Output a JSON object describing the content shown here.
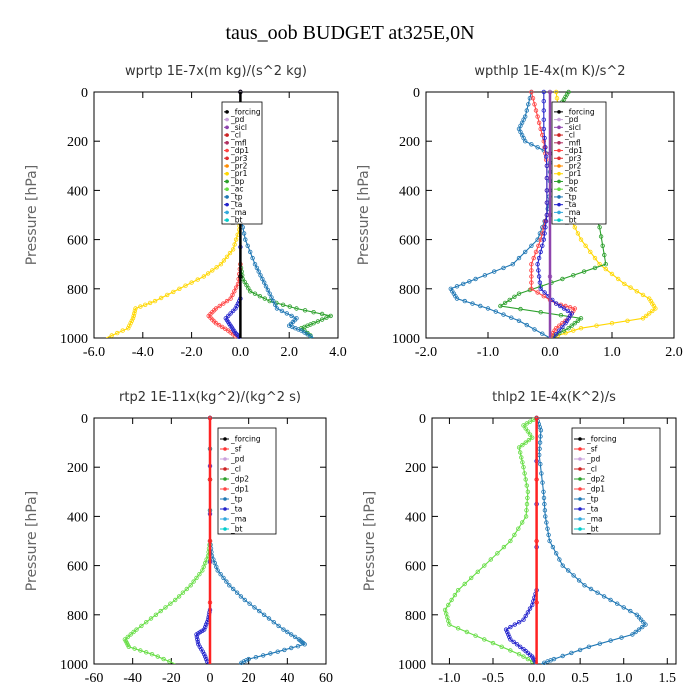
{
  "title": "taus_oob  BUDGET at325E,0N",
  "colors": {
    "forcing": "#000000",
    "pd": "#c9a0dc",
    "sicl": "#8e44ad",
    "cl": "#cc2222",
    "mfl": "#b03060",
    "dp1": "#ff4444",
    "pr3": "#e03030",
    "pr2": "#ff8c00",
    "pr1": "#ffd700",
    "bp": "#2ca02c",
    "ac": "#66dd44",
    "tp": "#1f77b4",
    "ta": "#2222cc",
    "ma": "#33aadd",
    "bt": "#00cccc"
  },
  "chart_data": [
    {
      "type": "line",
      "title": "wprtp   1E-7x(m kg)/(s^2 kg)",
      "ylabel": "Pressure [hPa]",
      "xlim": [
        -6.0,
        4.0
      ],
      "ylim": [
        1000,
        0
      ],
      "xticks": [
        "-6.0",
        "-4.0",
        "-2.0",
        "0.0",
        "2.0",
        "4.0"
      ],
      "xtick_values": [
        -6,
        -4,
        -2,
        0,
        2,
        4
      ],
      "yticks": [
        "0",
        "200",
        "400",
        "600",
        "800",
        "1000"
      ],
      "legend": [
        "_forcing",
        "_pd",
        "_sicl",
        "_cl",
        "_mfl",
        "_dp1",
        "_pr3",
        "_pr2",
        "_pr1",
        "_bp",
        "_ac",
        "_tp",
        "_ta",
        "_ma",
        "_bt"
      ],
      "series": [
        {
          "name": "_pr1",
          "color": "#ffd700",
          "x": [
            0,
            0,
            -0.05,
            -0.3,
            -0.8,
            -1.5,
            -2.5,
            -3.5,
            -4.3,
            -4.4,
            -4.6,
            -5.5
          ],
          "y": [
            0,
            500,
            560,
            640,
            700,
            750,
            800,
            850,
            880,
            920,
            960,
            1000
          ]
        },
        {
          "name": "_bp",
          "color": "#2ca02c",
          "x": [
            0,
            0,
            0.1,
            0.4,
            1.2,
            2.3,
            3.7,
            3.0,
            2.5,
            3.0
          ],
          "y": [
            0,
            700,
            760,
            810,
            850,
            880,
            910,
            940,
            960,
            1000
          ]
        },
        {
          "name": "_tp",
          "color": "#1f77b4",
          "x": [
            0,
            0,
            0.2,
            0.6,
            0.9,
            1.2,
            1.5,
            2.3,
            2.0,
            2.5,
            3.0
          ],
          "y": [
            0,
            500,
            600,
            700,
            760,
            820,
            880,
            920,
            950,
            970,
            1000
          ]
        },
        {
          "name": "_dp1",
          "color": "#ff4444",
          "x": [
            0,
            0,
            -0.1,
            -0.4,
            -1.0,
            -1.3,
            -1.0,
            -0.5,
            -0.1
          ],
          "y": [
            0,
            700,
            780,
            840,
            880,
            910,
            940,
            970,
            1000
          ]
        },
        {
          "name": "_ta",
          "color": "#2222cc",
          "x": [
            0,
            0,
            -0.2,
            -0.6,
            -0.4,
            -0.2,
            0
          ],
          "y": [
            0,
            840,
            880,
            920,
            950,
            980,
            1000
          ]
        },
        {
          "name": "_forcing",
          "color": "#000000",
          "x": [
            0,
            0
          ],
          "y": [
            0,
            1000
          ]
        }
      ]
    },
    {
      "type": "line",
      "title": "wpthlp   1E-4x(m K)/s^2",
      "ylabel": "Pressure [hPa]",
      "xlim": [
        -2.0,
        2.0
      ],
      "ylim": [
        1000,
        0
      ],
      "xticks": [
        "-2.0",
        "-1.0",
        "0.0",
        "1.0",
        "2.0"
      ],
      "xtick_values": [
        -2,
        -1,
        0,
        1,
        2
      ],
      "yticks": [
        "0",
        "200",
        "400",
        "600",
        "800",
        "1000"
      ],
      "legend": [
        "_forcing",
        "_pd",
        "_sicl",
        "_cl",
        "_mfl",
        "_dp1",
        "_pr3",
        "_pr2",
        "_pr1",
        "_bp",
        "_ac",
        "_tp",
        "_ta",
        "_ma",
        "_bt"
      ],
      "series": [
        {
          "name": "_pr1",
          "color": "#ffd700",
          "x": [
            0.1,
            0.15,
            0.1,
            0.15,
            0.2,
            0.3,
            0.5,
            0.8,
            1.2,
            1.6,
            1.7,
            1.5,
            0.5,
            0
          ],
          "y": [
            0,
            100,
            200,
            300,
            400,
            500,
            600,
            700,
            780,
            840,
            880,
            920,
            960,
            1000
          ]
        },
        {
          "name": "_bp",
          "color": "#2ca02c",
          "x": [
            0.3,
            0.2,
            0.5,
            0.3,
            0.3,
            0.4,
            0.6,
            0.8,
            0.9,
            0.2,
            -0.5,
            -0.8,
            0.5,
            0.3,
            0
          ],
          "y": [
            0,
            40,
            80,
            120,
            200,
            300,
            400,
            550,
            700,
            760,
            820,
            870,
            920,
            960,
            1000
          ]
        },
        {
          "name": "_tp",
          "color": "#1f77b4",
          "x": [
            -0.3,
            -0.4,
            -0.5,
            -0.4,
            0,
            0,
            -0.05,
            -0.2,
            -0.6,
            -1.2,
            -1.6,
            -1.5,
            -1.0,
            -0.5,
            0
          ],
          "y": [
            0,
            100,
            150,
            200,
            250,
            400,
            500,
            600,
            700,
            760,
            800,
            840,
            880,
            930,
            1000
          ]
        },
        {
          "name": "_dp1",
          "color": "#ff4444",
          "x": [
            -0.3,
            -0.2,
            -0.1,
            -0.05,
            -0.05,
            -0.15,
            -0.3,
            -0.3,
            0.1,
            0.4,
            0.3,
            0.1,
            0
          ],
          "y": [
            0,
            100,
            200,
            300,
            500,
            600,
            700,
            800,
            860,
            880,
            920,
            960,
            1000
          ]
        },
        {
          "name": "_ta",
          "color": "#2222cc",
          "x": [
            -0.1,
            -0.1,
            -0.05,
            -0.05,
            -0.1,
            -0.2,
            -0.15,
            0.1,
            0.35,
            0.25,
            0.05
          ],
          "y": [
            0,
            150,
            300,
            500,
            600,
            700,
            800,
            860,
            900,
            940,
            1000
          ]
        },
        {
          "name": "_sicl",
          "color": "#8e44ad",
          "x": [
            0,
            0
          ],
          "y": [
            0,
            1000
          ]
        }
      ]
    },
    {
      "type": "line",
      "title": "rtp2   1E-11x(kg^2)/(kg^2 s)",
      "ylabel": "Pressure [hPa]",
      "xlim": [
        -60,
        60
      ],
      "ylim": [
        1000,
        0
      ],
      "xticks": [
        "-60",
        "-40",
        "-20",
        "0",
        "20",
        "40",
        "60"
      ],
      "xtick_values": [
        -60,
        -40,
        -20,
        0,
        20,
        40,
        60
      ],
      "yticks": [
        "0",
        "200",
        "400",
        "600",
        "800",
        "1000"
      ],
      "legend": [
        "_forcing",
        "_sf",
        "_pd",
        "_cl",
        "_dp2",
        "_dp1",
        "_tp",
        "_ta",
        "_ma",
        "_bt"
      ],
      "series": [
        {
          "name": "_dp1",
          "color": "#66dd44",
          "x": [
            0,
            0,
            -1,
            -4,
            -10,
            -18,
            -28,
            -38,
            -44,
            -42,
            -30,
            -18
          ],
          "y": [
            0,
            500,
            560,
            620,
            680,
            740,
            800,
            860,
            900,
            930,
            960,
            1000
          ]
        },
        {
          "name": "_tp",
          "color": "#1f77b4",
          "x": [
            0,
            0,
            1,
            4,
            10,
            18,
            28,
            38,
            46,
            49,
            35,
            20,
            15
          ],
          "y": [
            0,
            500,
            560,
            620,
            680,
            740,
            800,
            860,
            900,
            920,
            950,
            980,
            1000
          ]
        },
        {
          "name": "_ta",
          "color": "#2222cc",
          "x": [
            0,
            0,
            -1,
            -3,
            -7,
            -6,
            -3,
            -1
          ],
          "y": [
            0,
            780,
            820,
            860,
            880,
            920,
            960,
            1000
          ]
        },
        {
          "name": "_forcing",
          "color": "#ff2222",
          "x": [
            0,
            0
          ],
          "y": [
            0,
            1000
          ]
        }
      ]
    },
    {
      "type": "line",
      "title": "thlp2   1E-4x(K^2)/s",
      "ylabel": "Pressure [hPa]",
      "xlim": [
        -1.2,
        1.6
      ],
      "ylim": [
        1000,
        0
      ],
      "xticks": [
        "-1.0",
        "-0.5",
        "0.0",
        "0.5",
        "1.0",
        "1.5"
      ],
      "xtick_values": [
        -1.0,
        -0.5,
        0.0,
        0.5,
        1.0,
        1.5
      ],
      "yticks": [
        "0",
        "200",
        "400",
        "600",
        "800",
        "1000"
      ],
      "legend": [
        "_forcing",
        "_sf",
        "_pd",
        "_cl",
        "_dp2",
        "_dp1",
        "_tp",
        "_ta",
        "_ma",
        "_bt"
      ],
      "series": [
        {
          "name": "_dp1",
          "color": "#66dd44",
          "x": [
            0,
            -0.15,
            -0.05,
            -0.2,
            -0.15,
            -0.1,
            -0.12,
            -0.3,
            -0.6,
            -0.9,
            -1.05,
            -1.0,
            -0.6,
            -0.2,
            0
          ],
          "y": [
            0,
            30,
            80,
            120,
            200,
            300,
            400,
            500,
            600,
            700,
            780,
            840,
            900,
            960,
            1000
          ]
        },
        {
          "name": "_tp",
          "color": "#1f77b4",
          "x": [
            0,
            0.05,
            0.03,
            0.08,
            0.1,
            0.15,
            0.3,
            0.55,
            0.85,
            1.15,
            1.25,
            1.1,
            0.6,
            0.2,
            0.05
          ],
          "y": [
            0,
            50,
            150,
            300,
            400,
            500,
            600,
            680,
            740,
            800,
            840,
            880,
            930,
            980,
            1000
          ]
        },
        {
          "name": "_ta",
          "color": "#2222cc",
          "x": [
            0,
            0,
            -0.05,
            -0.15,
            -0.35,
            -0.3,
            -0.15,
            -0.05,
            0
          ],
          "y": [
            0,
            700,
            760,
            820,
            860,
            900,
            940,
            970,
            1000
          ]
        },
        {
          "name": "_forcing",
          "color": "#ff2222",
          "x": [
            0,
            0
          ],
          "y": [
            0,
            1000
          ]
        }
      ]
    }
  ]
}
